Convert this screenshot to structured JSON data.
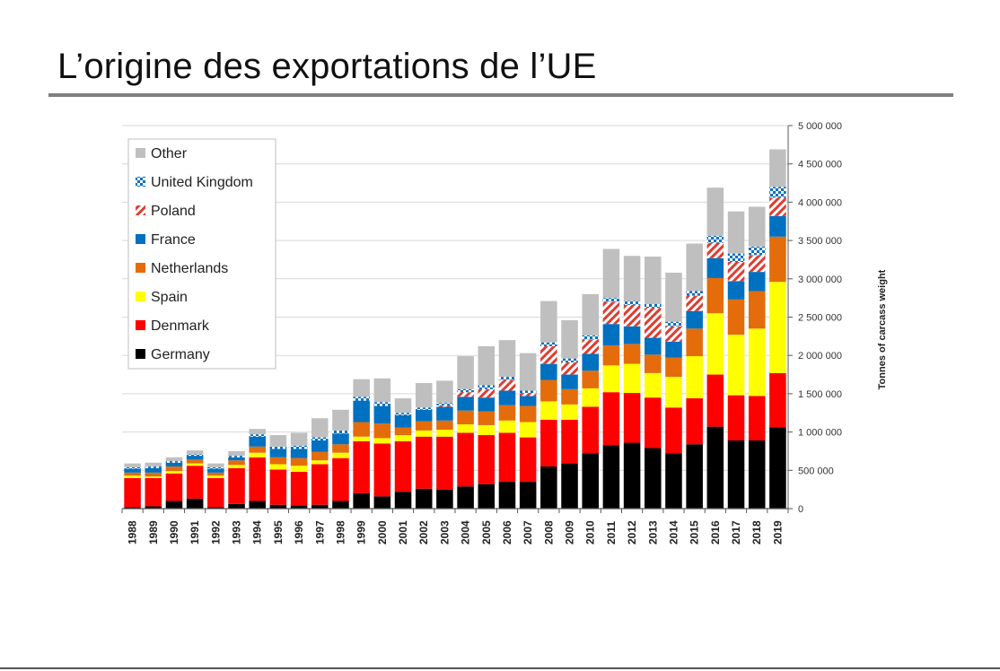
{
  "slide": {
    "title": "L’origine des exportations de l’UE"
  },
  "chart_data": {
    "type": "bar",
    "stacked": true,
    "ylabel": "Tonnes of carcass weight",
    "ylim": [
      0,
      5000000
    ],
    "yticks": [
      0,
      500000,
      1000000,
      1500000,
      2000000,
      2500000,
      3000000,
      3500000,
      4000000,
      4500000,
      5000000
    ],
    "ytick_labels": [
      "0",
      "500 000",
      "1 000 000",
      "1 500 000",
      "2 000 000",
      "2 500 000",
      "3 000 000",
      "3 500 000",
      "4 000 000",
      "4 500 000",
      "5 000 000"
    ],
    "y_axis_side": "right",
    "grid": true,
    "legend_position": "top-left",
    "categories": [
      "1988",
      "1989",
      "1990",
      "1991",
      "1992",
      "1993",
      "1994",
      "1995",
      "1996",
      "1997",
      "1998",
      "1999",
      "2000",
      "2001",
      "2002",
      "2003",
      "2004",
      "2005",
      "2006",
      "2007",
      "2008",
      "2009",
      "2010",
      "2011",
      "2012",
      "2013",
      "2014",
      "2015",
      "2016",
      "2017",
      "2018",
      "2019"
    ],
    "series": [
      {
        "name": "Germany",
        "color": "#000000",
        "pattern": "solid",
        "values": [
          20000,
          30000,
          100000,
          130000,
          20000,
          60000,
          100000,
          50000,
          40000,
          50000,
          100000,
          200000,
          160000,
          220000,
          260000,
          250000,
          290000,
          320000,
          350000,
          350000,
          550000,
          590000,
          720000,
          830000,
          860000,
          790000,
          720000,
          840000,
          1070000,
          890000,
          890000,
          1060000
        ]
      },
      {
        "name": "Denmark",
        "color": "#ff0000",
        "pattern": "solid",
        "values": [
          380000,
          370000,
          360000,
          430000,
          380000,
          470000,
          570000,
          460000,
          440000,
          530000,
          560000,
          680000,
          690000,
          660000,
          680000,
          690000,
          700000,
          640000,
          640000,
          580000,
          610000,
          570000,
          610000,
          690000,
          650000,
          660000,
          600000,
          600000,
          680000,
          590000,
          580000,
          710000
        ]
      },
      {
        "name": "Spain",
        "color": "#ffff00",
        "pattern": "solid",
        "values": [
          30000,
          20000,
          30000,
          30000,
          30000,
          40000,
          60000,
          70000,
          80000,
          50000,
          70000,
          60000,
          70000,
          80000,
          80000,
          90000,
          110000,
          130000,
          160000,
          200000,
          240000,
          200000,
          240000,
          350000,
          380000,
          320000,
          400000,
          550000,
          800000,
          790000,
          880000,
          1190000
        ]
      },
      {
        "name": "Netherlands",
        "color": "#e46c0a",
        "pattern": "solid",
        "values": [
          40000,
          50000,
          60000,
          50000,
          40000,
          60000,
          80000,
          90000,
          100000,
          110000,
          110000,
          190000,
          190000,
          100000,
          120000,
          120000,
          180000,
          180000,
          200000,
          210000,
          280000,
          200000,
          230000,
          260000,
          260000,
          240000,
          250000,
          360000,
          460000,
          460000,
          490000,
          590000
        ]
      },
      {
        "name": "France",
        "color": "#0070c0",
        "pattern": "solid",
        "values": [
          50000,
          60000,
          50000,
          50000,
          50000,
          40000,
          130000,
          110000,
          120000,
          150000,
          140000,
          280000,
          230000,
          160000,
          150000,
          180000,
          180000,
          180000,
          190000,
          130000,
          210000,
          190000,
          220000,
          280000,
          230000,
          220000,
          210000,
          230000,
          260000,
          240000,
          250000,
          270000
        ]
      },
      {
        "name": "Poland",
        "color": "#e03c31",
        "pattern": "hatch",
        "values": [
          0,
          0,
          0,
          0,
          0,
          0,
          0,
          0,
          0,
          0,
          0,
          0,
          0,
          0,
          0,
          20000,
          60000,
          110000,
          140000,
          40000,
          230000,
          160000,
          190000,
          290000,
          280000,
          390000,
          200000,
          200000,
          200000,
          250000,
          220000,
          240000
        ]
      },
      {
        "name": "United Kingdom",
        "color": "#0070c0",
        "pattern": "checker",
        "values": [
          20000,
          20000,
          20000,
          20000,
          20000,
          20000,
          30000,
          30000,
          40000,
          40000,
          40000,
          50000,
          50000,
          30000,
          30000,
          30000,
          40000,
          50000,
          40000,
          30000,
          50000,
          50000,
          50000,
          50000,
          50000,
          50000,
          60000,
          60000,
          90000,
          110000,
          110000,
          140000
        ]
      },
      {
        "name": "Other",
        "color": "#bfbfbf",
        "pattern": "solid",
        "values": [
          50000,
          50000,
          50000,
          50000,
          50000,
          60000,
          70000,
          150000,
          170000,
          250000,
          270000,
          230000,
          310000,
          190000,
          320000,
          290000,
          430000,
          510000,
          480000,
          490000,
          540000,
          500000,
          540000,
          640000,
          590000,
          620000,
          640000,
          620000,
          630000,
          550000,
          520000,
          490000
        ]
      }
    ],
    "legend_order": [
      "Other",
      "United Kingdom",
      "Poland",
      "France",
      "Netherlands",
      "Spain",
      "Denmark",
      "Germany"
    ]
  }
}
